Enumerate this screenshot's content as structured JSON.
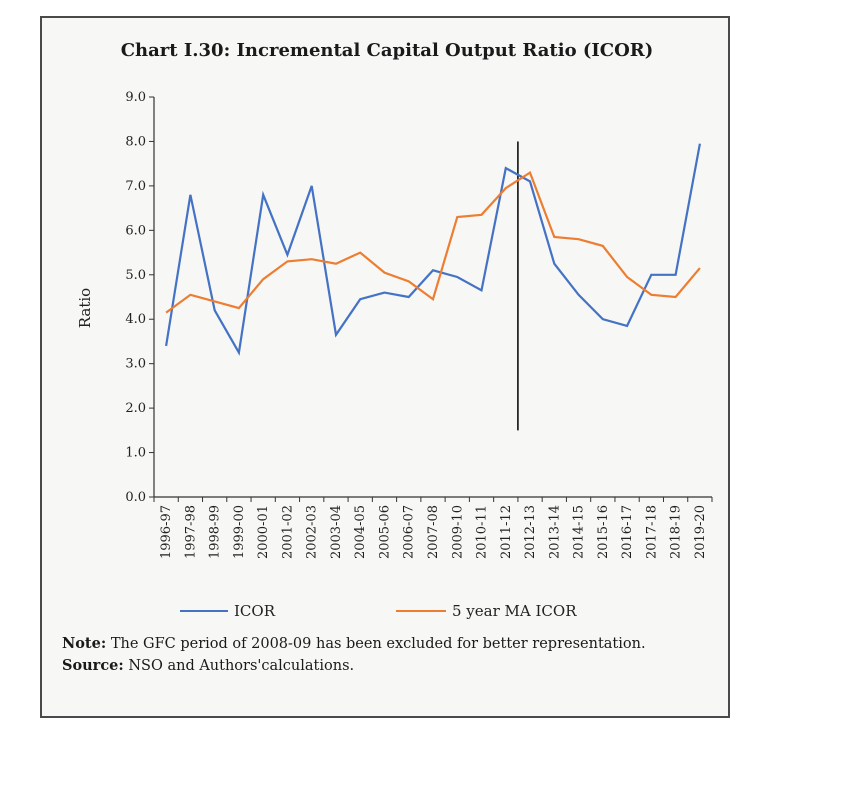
{
  "chart_data": {
    "type": "line",
    "title": "Chart I.30: Incremental Capital Output Ratio (ICOR)",
    "xlabel": "",
    "ylabel": "Ratio",
    "ylim": [
      0,
      9
    ],
    "yticks": [
      "0.0",
      "1.0",
      "2.0",
      "3.0",
      "4.0",
      "5.0",
      "6.0",
      "7.0",
      "8.0",
      "9.0"
    ],
    "categories": [
      "1996-97",
      "1997-98",
      "1998-99",
      "1999-00",
      "2000-01",
      "2001-02",
      "2002-03",
      "2003-04",
      "2004-05",
      "2005-06",
      "2006-07",
      "2007-08",
      "2009-10",
      "2010-11",
      "2011-12",
      "2012-13",
      "2013-14",
      "2014-15",
      "2015-16",
      "2016-17",
      "2017-18",
      "2018-19",
      "2019-20"
    ],
    "series": [
      {
        "name": "ICOR",
        "color": "#4472c4",
        "values": [
          3.4,
          6.8,
          4.2,
          3.25,
          6.8,
          5.45,
          7.0,
          3.65,
          4.45,
          4.6,
          4.5,
          5.1,
          4.95,
          4.65,
          7.4,
          7.1,
          5.25,
          4.55,
          4.0,
          3.85,
          5.0,
          5.0,
          7.95
        ]
      },
      {
        "name": "5 year MA ICOR",
        "color": "#ed7d31",
        "values": [
          4.15,
          4.55,
          4.4,
          4.25,
          4.9,
          5.3,
          5.35,
          5.25,
          5.5,
          5.05,
          4.85,
          4.45,
          6.3,
          6.35,
          6.95,
          7.3,
          5.85,
          5.8,
          5.65,
          4.95,
          4.55,
          4.5,
          5.15
        ]
      }
    ],
    "annotation": {
      "type": "vertical-line",
      "between": [
        "2011-12",
        "2012-13"
      ],
      "from": 1.5,
      "to": 8.0,
      "color": "#000000"
    },
    "legend_position": "bottom"
  },
  "notes": {
    "note_label": "Note:",
    "note_text": "The GFC period of 2008-09 has been excluded for better representation.",
    "source_label": "Source:",
    "source_text": "NSO and Authors'calculations."
  }
}
